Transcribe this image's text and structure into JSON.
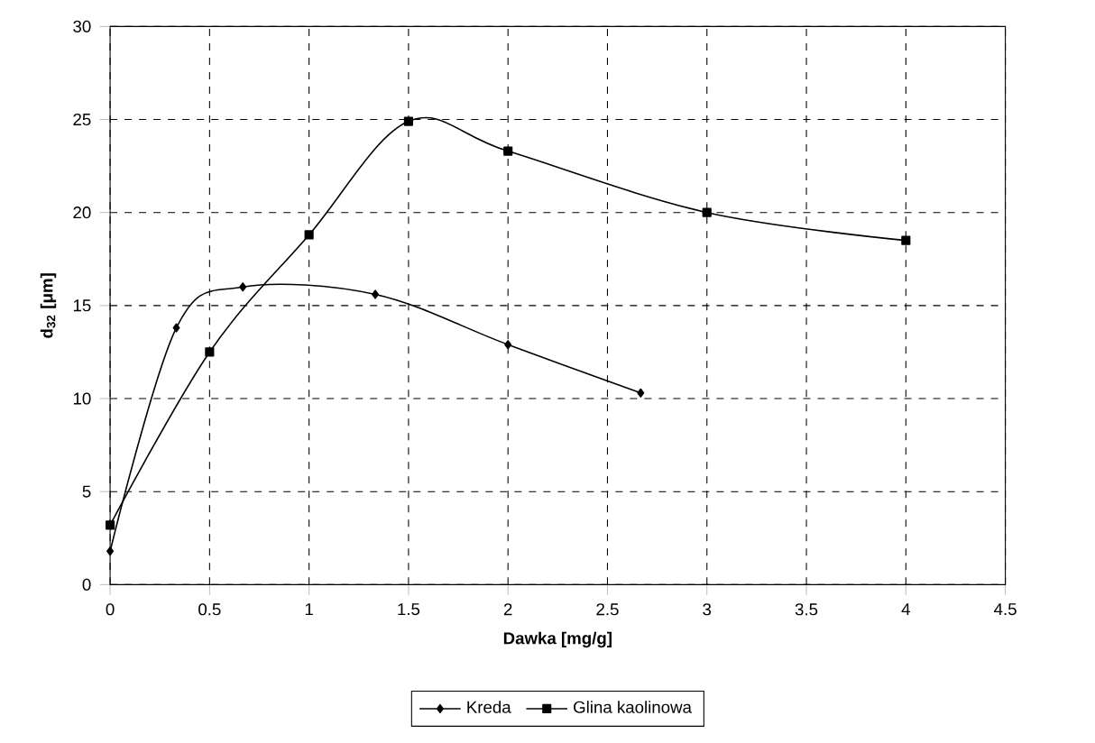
{
  "chart_data": {
    "type": "line",
    "xlabel": "Dawka [mg/g]",
    "ylabel": "d$_{32}$ [μm]",
    "xlim": [
      0,
      4.5
    ],
    "xticks": [
      0,
      0.5,
      1,
      1.5,
      2,
      2.5,
      3,
      3.5,
      4,
      4.5
    ],
    "ylim": [
      0,
      30
    ],
    "yticks": [
      0,
      5,
      10,
      15,
      20,
      25,
      30
    ],
    "grid": true,
    "legend": "bottom",
    "series": [
      {
        "name": "Kreda",
        "color": "#000000",
        "marker": "diamond",
        "x": [
          0,
          0.333,
          0.667,
          1.333,
          2,
          2.667
        ],
        "values": [
          1.8,
          13.8,
          16.0,
          15.6,
          12.9,
          10.3
        ]
      },
      {
        "name": "Glina kaolinowa",
        "color": "#000000",
        "marker": "square",
        "x": [
          0,
          0.5,
          1,
          1.5,
          2,
          3,
          4
        ],
        "values": [
          3.2,
          12.5,
          18.8,
          24.9,
          23.3,
          20.0,
          18.5
        ]
      }
    ]
  }
}
